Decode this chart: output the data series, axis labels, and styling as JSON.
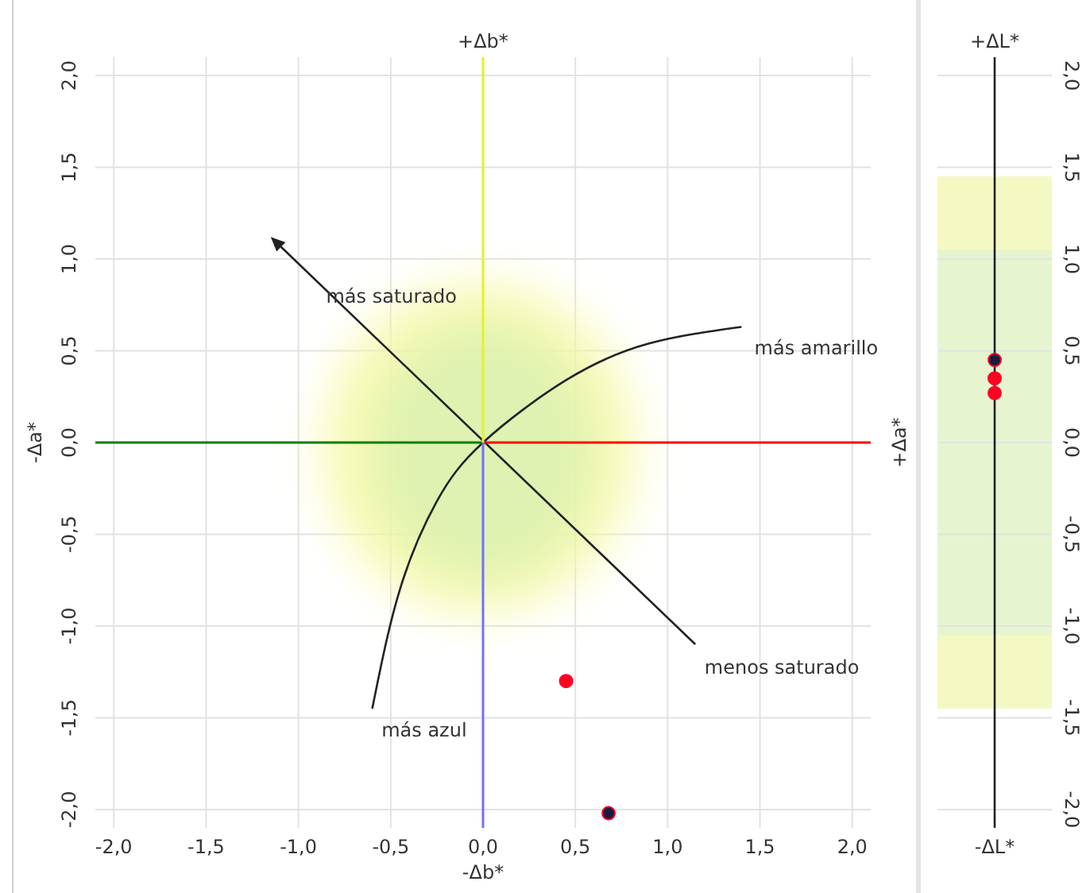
{
  "chart_data": [
    {
      "type": "scatter",
      "xlabel": "-Δb*",
      "x2label": "+Δb*",
      "ylabel": "-Δa*",
      "y2label": "+Δa*",
      "xlim": [
        -2.1,
        2.1
      ],
      "ylim": [
        -2.1,
        2.1
      ],
      "xticks": [
        {
          "value": -2,
          "label": "-2,0"
        },
        {
          "value": -1.5,
          "label": "-1,5"
        },
        {
          "value": -1,
          "label": "-1,0"
        },
        {
          "value": -0.5,
          "label": "-0,5"
        },
        {
          "value": 0,
          "label": "0,0"
        },
        {
          "value": 0.5,
          "label": "0,5"
        },
        {
          "value": 1,
          "label": "1,0"
        },
        {
          "value": 1.5,
          "label": "1,5"
        },
        {
          "value": 2,
          "label": "2,0"
        }
      ],
      "yticks": [
        {
          "value": -2,
          "label": "-2,0"
        },
        {
          "value": -1.5,
          "label": "-1,5"
        },
        {
          "value": -1,
          "label": "-1,0"
        },
        {
          "value": -0.5,
          "label": "-0,5"
        },
        {
          "value": 0,
          "label": "0,0"
        },
        {
          "value": 0.5,
          "label": "0,5"
        },
        {
          "value": 1,
          "label": "1,0"
        },
        {
          "value": 1.5,
          "label": "1,5"
        },
        {
          "value": 2,
          "label": "2,0"
        }
      ],
      "grid": true,
      "annotations": [
        "más saturado",
        "más amarillo",
        "menos saturado",
        "más azul"
      ],
      "series": [
        {
          "type": "line",
          "color": "#008000",
          "x": [
            -2.1,
            0
          ],
          "values": [
            0,
            0
          ]
        },
        {
          "type": "line",
          "color": "#ff0000",
          "x": [
            0,
            2.1
          ],
          "values": [
            0,
            0
          ]
        },
        {
          "type": "line",
          "color": "#e6f02a",
          "x": [
            0,
            0
          ],
          "values": [
            0,
            2.1
          ]
        },
        {
          "type": "line",
          "color": "#7070ff",
          "x": [
            0,
            0
          ],
          "values": [
            -2.1,
            0
          ]
        },
        {
          "color": "#ff0022",
          "marker": "circle",
          "x": [
            0.45
          ],
          "values": [
            -1.3
          ]
        },
        {
          "color": "#1a1a40",
          "marker": "circle",
          "x": [
            0.68
          ],
          "values": [
            -2.02
          ]
        }
      ]
    },
    {
      "type": "scatter",
      "xlabel": "-ΔL*",
      "x2label": "+ΔL*",
      "categories": [
        null
      ],
      "ylim": [
        -2.1,
        2.1
      ],
      "yticks": [
        {
          "value": -2,
          "label": "-2,0"
        },
        {
          "value": -1.5,
          "label": "-1,5"
        },
        {
          "value": -1,
          "label": "-1,0"
        },
        {
          "value": -0.5,
          "label": "-0,5"
        },
        {
          "value": 0,
          "label": "0,0"
        },
        {
          "value": 0.5,
          "label": "0,5"
        },
        {
          "value": 1,
          "label": "1,0"
        },
        {
          "value": 1.5,
          "label": "1,5"
        },
        {
          "value": 2,
          "label": "2,0"
        }
      ],
      "tick_labels": "y",
      "grid": "y",
      "marker": "circle",
      "bands": [
        {
          "axis": "y",
          "from": -1.45,
          "to": 1.45,
          "color": "#f4f9c4"
        },
        {
          "axis": "y",
          "from": -1.05,
          "to": 1.05,
          "color": "#e6f5d0"
        }
      ],
      "series": [
        {
          "color": "#1a1a40",
          "values": [
            0.45
          ]
        },
        {
          "color": "#ff0022",
          "values": [
            0.35
          ]
        },
        {
          "color": "#ff0022",
          "values": [
            0.27
          ]
        }
      ]
    }
  ]
}
